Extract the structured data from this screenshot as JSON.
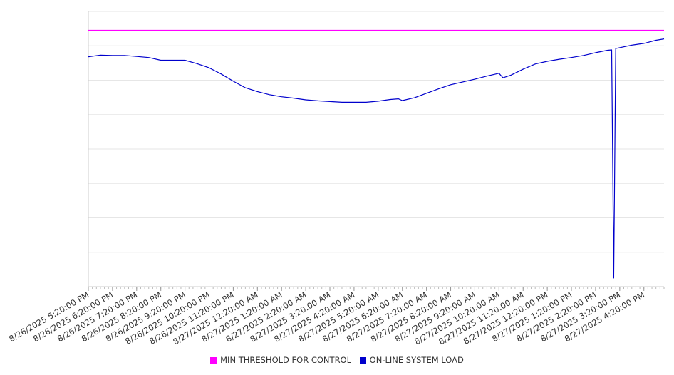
{
  "chart_data": {
    "type": "line",
    "title": "",
    "xlabel": "",
    "ylabel": "",
    "grid": true,
    "legend_position": "bottom",
    "y_gridlines": 8,
    "x_start": "8/26/2025 5:20:00 PM",
    "x_end": "8/27/2025 5:10:00 PM",
    "x_tick_labels": [
      "8/26/2025 5:20:00 PM",
      "8/26/2025 6:20:00 PM",
      "8/26/2025 7:20:00 PM",
      "8/26/2025 8:20:00 PM",
      "8/26/2025 9:20:00 PM",
      "8/26/2025 10:20:00 PM",
      "8/26/2025 11:20:00 PM",
      "8/27/2025 12:20:00 AM",
      "8/27/2025 1:20:00 AM",
      "8/27/2025 2:20:00 AM",
      "8/27/2025 3:20:00 AM",
      "8/27/2025 4:20:00 AM",
      "8/27/2025 5:20:00 AM",
      "8/27/2025 6:20:00 AM",
      "8/27/2025 7:20:00 AM",
      "8/27/2025 8:20:00 AM",
      "8/27/2025 9:20:00 AM",
      "8/27/2025 10:20:00 AM",
      "8/27/2025 11:20:00 AM",
      "8/27/2025 12:20:00 PM",
      "8/27/2025 1:20:00 PM",
      "8/27/2025 2:20:00 PM",
      "8/27/2025 3:20:00 PM",
      "8/27/2025 4:20:00 PM"
    ],
    "ylim": [
      0,
      8
    ],
    "series": [
      {
        "name": "MIN THRESHOLD FOR CONTROL",
        "color": "#ff00ff",
        "points": [
          [
            "8/26/2025 5:20:00 PM",
            7.45
          ],
          [
            "8/27/2025 5:10:00 PM",
            7.45
          ]
        ]
      },
      {
        "name": "ON-LINE SYSTEM LOAD",
        "color": "#0000cc",
        "points": [
          [
            "8/26/2025 5:20:00 PM",
            6.68
          ],
          [
            "8/26/2025 5:50:00 PM",
            6.73
          ],
          [
            "8/26/2025 6:20:00 PM",
            6.72
          ],
          [
            "8/26/2025 6:50:00 PM",
            6.72
          ],
          [
            "8/26/2025 7:20:00 PM",
            6.69
          ],
          [
            "8/26/2025 7:50:00 PM",
            6.66
          ],
          [
            "8/26/2025 8:20:00 PM",
            6.58
          ],
          [
            "8/26/2025 8:50:00 PM",
            6.58
          ],
          [
            "8/26/2025 9:20:00 PM",
            6.58
          ],
          [
            "8/26/2025 9:50:00 PM",
            6.48
          ],
          [
            "8/26/2025 10:20:00 PM",
            6.36
          ],
          [
            "8/26/2025 10:50:00 PM",
            6.18
          ],
          [
            "8/26/2025 11:20:00 PM",
            5.97
          ],
          [
            "8/26/2025 11:50:00 PM",
            5.78
          ],
          [
            "8/27/2025 12:20:00 AM",
            5.67
          ],
          [
            "8/27/2025 12:50:00 AM",
            5.58
          ],
          [
            "8/27/2025 1:20:00 AM",
            5.52
          ],
          [
            "8/27/2025 1:50:00 AM",
            5.48
          ],
          [
            "8/27/2025 2:20:00 AM",
            5.43
          ],
          [
            "8/27/2025 2:50:00 AM",
            5.4
          ],
          [
            "8/27/2025 3:20:00 AM",
            5.38
          ],
          [
            "8/27/2025 3:50:00 AM",
            5.36
          ],
          [
            "8/27/2025 4:20:00 AM",
            5.36
          ],
          [
            "8/27/2025 4:50:00 AM",
            5.36
          ],
          [
            "8/27/2025 5:20:00 AM",
            5.39
          ],
          [
            "8/27/2025 5:50:00 AM",
            5.44
          ],
          [
            "8/27/2025 6:10:00 AM",
            5.46
          ],
          [
            "8/27/2025 6:20:00 AM",
            5.41
          ],
          [
            "8/27/2025 6:50:00 AM",
            5.49
          ],
          [
            "8/27/2025 7:20:00 AM",
            5.62
          ],
          [
            "8/27/2025 7:50:00 AM",
            5.75
          ],
          [
            "8/27/2025 8:20:00 AM",
            5.87
          ],
          [
            "8/27/2025 8:50:00 AM",
            5.95
          ],
          [
            "8/27/2025 9:20:00 AM",
            6.03
          ],
          [
            "8/27/2025 9:50:00 AM",
            6.12
          ],
          [
            "8/27/2025 10:20:00 AM",
            6.2
          ],
          [
            "8/27/2025 10:30:00 AM",
            6.07
          ],
          [
            "8/27/2025 10:50:00 AM",
            6.15
          ],
          [
            "8/27/2025 11:20:00 AM",
            6.32
          ],
          [
            "8/27/2025 11:50:00 AM",
            6.47
          ],
          [
            "8/27/2025 12:20:00 PM",
            6.55
          ],
          [
            "8/27/2025 12:50:00 PM",
            6.61
          ],
          [
            "8/27/2025 1:20:00 PM",
            6.66
          ],
          [
            "8/27/2025 1:50:00 PM",
            6.72
          ],
          [
            "8/27/2025 2:20:00 PM",
            6.8
          ],
          [
            "8/27/2025 2:50:00 PM",
            6.87
          ],
          [
            "8/27/2025 3:00:00 PM",
            6.88
          ],
          [
            "8/27/2025 3:05:00 PM",
            0.25
          ],
          [
            "8/27/2025 3:10:00 PM",
            6.92
          ],
          [
            "8/27/2025 3:30:00 PM",
            6.97
          ],
          [
            "8/27/2025 3:50:00 PM",
            7.02
          ],
          [
            "8/27/2025 4:20:00 PM",
            7.07
          ],
          [
            "8/27/2025 4:50:00 PM",
            7.16
          ],
          [
            "8/27/2025 5:10:00 PM",
            7.2
          ]
        ]
      }
    ]
  }
}
